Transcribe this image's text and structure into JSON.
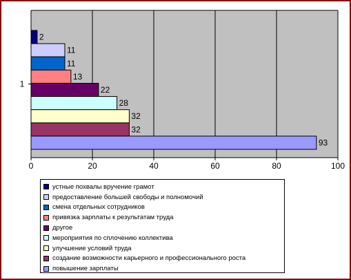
{
  "chart_data": {
    "type": "bar",
    "orientation": "horizontal",
    "title": "",
    "xlabel": "",
    "ylabel": "",
    "categories": [
      "1"
    ],
    "xlim": [
      0,
      100
    ],
    "x_ticks": [
      "0",
      "20",
      "40",
      "60",
      "80",
      "100"
    ],
    "grid": true,
    "legend_position": "bottom",
    "series": [
      {
        "name": "устные похвалы вручение грамот",
        "value": 2,
        "label": "2",
        "color": "#000080"
      },
      {
        "name": "предоставление большей свободы и полномочий",
        "value": 11,
        "label": "11",
        "color": "#ccccff"
      },
      {
        "name": "смена отдельных сотрудников",
        "value": 11,
        "label": "11",
        "color": "#0066cc"
      },
      {
        "name": "привязка зарплаты к результатам труда",
        "value": 13,
        "label": "13",
        "color": "#ff8080"
      },
      {
        "name": "другое",
        "value": 22,
        "label": "22",
        "color": "#660066"
      },
      {
        "name": "мероприятия по сплочению коллектива",
        "value": 28,
        "label": "28",
        "color": "#ccffff"
      },
      {
        "name": "улучшение условий труда",
        "value": 32,
        "label": "32",
        "color": "#ffffcc"
      },
      {
        "name": "создание возможности карьерного и профессионального роста",
        "value": 32,
        "label": "32",
        "color": "#993366"
      },
      {
        "name": "повышение зарплаты",
        "value": 93,
        "label": "93",
        "color": "#9999ff"
      }
    ]
  },
  "colors": {
    "plot_background": "#c0c0c0",
    "frame_border": "#8b0000"
  }
}
